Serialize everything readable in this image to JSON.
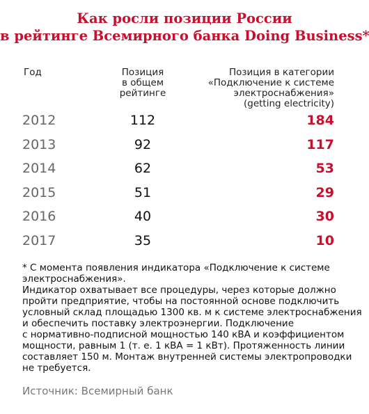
{
  "title": {
    "line1": "Как росли позиции России",
    "line2": "в рейтинге Всемирного банка Doing Business*"
  },
  "headers": {
    "year": "Год",
    "overall": [
      "Позиция",
      "в общем",
      "рейтинге"
    ],
    "category": [
      "Позиция в категории",
      "«Подключение к системе",
      "электроснабжения»",
      "(getting electricity)"
    ]
  },
  "rows": [
    {
      "year": "2012",
      "overall": "112",
      "category": "184"
    },
    {
      "year": "2013",
      "overall": "92",
      "category": "117"
    },
    {
      "year": "2014",
      "overall": "62",
      "category": "53"
    },
    {
      "year": "2015",
      "overall": "51",
      "category": "29"
    },
    {
      "year": "2016",
      "overall": "40",
      "category": "30"
    },
    {
      "year": "2017",
      "overall": "35",
      "category": "10"
    }
  ],
  "footnote": [
    "* С момента появления индикатора «Подключение к системе",
    "электроснабжения».",
    "Индикатор охватывает все процедуры, через которые должно",
    "пройти предприятие, чтобы на постоянной основе подключить",
    "условный склад площадью 1300 кв. м к системе электроснабжения",
    "и обеспечить поставку электроэнергии. Подключение",
    "с нормативно-подписной мощностью 140 кВА и коэффициентом",
    "мощности, равным 1 (т. е. 1 кВА = 1 кВт). Протяженность линии",
    "составляет 150 м. Монтаж внутренней системы электропроводки",
    "не требуется."
  ],
  "source": "Источник: Всемирный банк",
  "colors": {
    "accent": "#c8102e",
    "year_gray": "#666666",
    "source_gray": "#777777"
  }
}
